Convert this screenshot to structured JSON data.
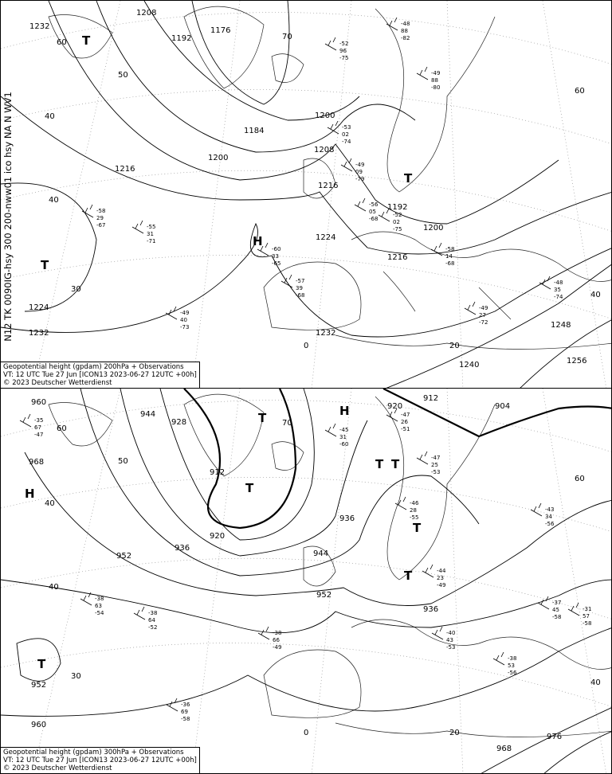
{
  "side_label": "N12  TK  0090IG-hsy  300  200-nww01  ico  hsy  NA  N  WV1",
  "panels": [
    {
      "caption": {
        "line1": "Geopotential height (gpdam) 200hPa + Observations",
        "line2": "VT: 12 UTC Tue  27 Jun  [ICON13  2023-06-27 12UTC  +00h]",
        "line3": "©  2023 Deutscher Wetterdienst"
      },
      "contour_labels": [
        "1232",
        "1208",
        "1192",
        "1176",
        "1184",
        "1200",
        "1216",
        "1200",
        "1208",
        "1216",
        "1192",
        "1200",
        "1216",
        "1224",
        "1224",
        "1232",
        "1232",
        "1240",
        "1248",
        "1256"
      ],
      "lat_lon_labels": [
        "60",
        "50",
        "40",
        "40",
        "30",
        "70",
        "0",
        "20",
        "60",
        "40"
      ],
      "systems": [
        "T",
        "T",
        "T",
        "H"
      ],
      "observations": [
        [
          "-55",
          "31",
          "-71"
        ],
        [
          "-58",
          "29",
          "-67"
        ],
        [
          "-60",
          "33",
          "-65"
        ],
        [
          "-57",
          "39",
          "-68"
        ],
        [
          "-49",
          "40",
          "-73"
        ],
        [
          "-52",
          "96",
          "-75"
        ],
        [
          "-48",
          "88",
          "-82"
        ],
        [
          "-49",
          "88",
          "-80"
        ],
        [
          "-53",
          "02",
          "-74"
        ],
        [
          "-49",
          "09",
          "-79"
        ],
        [
          "-52",
          "02",
          "-75"
        ],
        [
          "-56",
          "05",
          "-68"
        ],
        [
          "-58",
          "14",
          "-68"
        ],
        [
          "-49",
          "27",
          "-72"
        ],
        [
          "-48",
          "35",
          "-74"
        ]
      ]
    },
    {
      "caption": {
        "line1": "Geopotential height (gpdam) 300hPa + Observations",
        "line2": "VT: 12 UTC Tue  27 Jun [ICON13  2023-06-27 12UTC  +00h]",
        "line3": "©  2023 Deutscher Wetterdienst"
      },
      "contour_labels": [
        "960",
        "968",
        "944",
        "928",
        "912",
        "920",
        "936",
        "952",
        "936",
        "944",
        "952",
        "920",
        "912",
        "904",
        "936",
        "968",
        "976",
        "960",
        "952"
      ],
      "lat_lon_labels": [
        "60",
        "50",
        "40",
        "40",
        "30",
        "70",
        "0",
        "20",
        "60",
        "40"
      ],
      "systems": [
        "H",
        "T",
        "T",
        "T",
        "T",
        "T",
        "T",
        "H",
        "T"
      ],
      "observations": [
        [
          "-35",
          "67",
          "-47"
        ],
        [
          "-38",
          "63",
          "-54"
        ],
        [
          "-38",
          "64",
          "-52"
        ],
        [
          "-36",
          "69",
          "-58"
        ],
        [
          "-38",
          "66",
          "-49"
        ],
        [
          "-45",
          "31",
          "-60"
        ],
        [
          "-47",
          "26",
          "-51"
        ],
        [
          "-47",
          "25",
          "-53"
        ],
        [
          "-46",
          "28",
          "-55"
        ],
        [
          "-43",
          "34",
          "-56"
        ],
        [
          "-44",
          "23",
          "-49"
        ],
        [
          "-40",
          "43",
          "-53"
        ],
        [
          "-38",
          "53",
          "-56"
        ],
        [
          "-37",
          "45",
          "-58"
        ],
        [
          "-31",
          "57",
          "-58"
        ]
      ]
    }
  ]
}
